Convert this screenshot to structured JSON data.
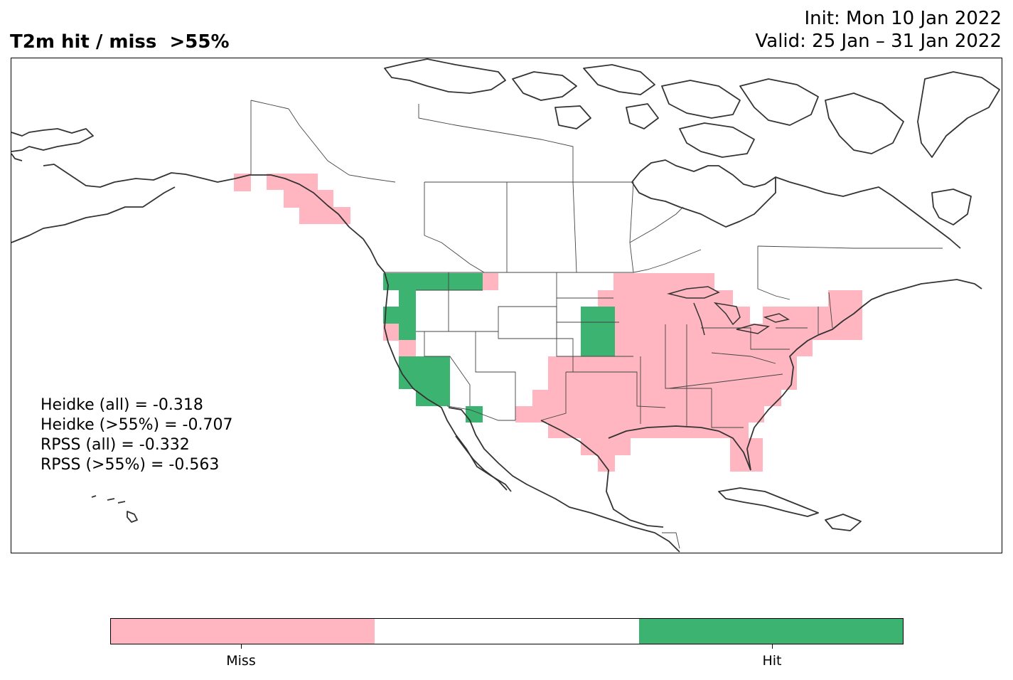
{
  "title": "T2m hit / miss  >55%",
  "init_line": "Init: Mon 10 Jan 2022",
  "valid_line": "Valid: 25 Jan – 31 Jan 2022",
  "scores": [
    "Heidke (all) = -0.318",
    "Heidke (>55%) = -0.707",
    "RPSS (all) = -0.332",
    "RPSS (>55%) = -0.563"
  ],
  "legend": {
    "categories": [
      {
        "label": "Miss",
        "color": "#ffb6c1"
      },
      {
        "label": "",
        "color": "#ffffff"
      },
      {
        "label": "Hit",
        "color": "#3cb371"
      }
    ]
  },
  "colors": {
    "miss": "#ffb6c1",
    "hit": "#3cb371",
    "coast": "#333333",
    "border": "#444444"
  }
}
